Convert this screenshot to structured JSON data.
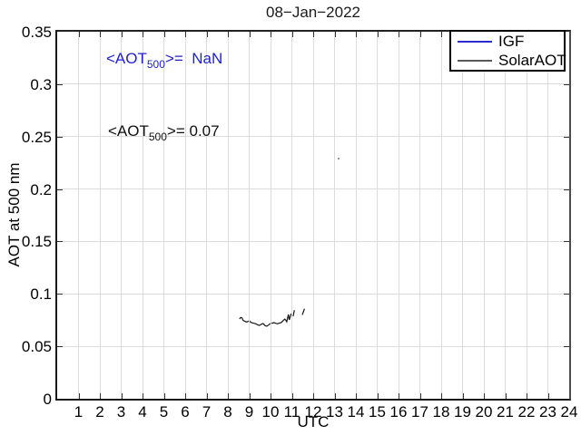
{
  "figure": {
    "title": "08−Jan−2022",
    "xlabel": "UTC",
    "ylabel": "AOT at 500 nm"
  },
  "annotations": {
    "igf_mean": {
      "pre": "<AOT",
      "sub": "500",
      "post": ">=  NaN",
      "color": "#2222cc"
    },
    "solar_mean": {
      "pre": "<AOT",
      "sub": "500",
      "post": ">= 0.07",
      "color": "#111111"
    }
  },
  "legend": {
    "items": [
      {
        "label": "IGF",
        "color": "#2a2ad4"
      },
      {
        "label": "SolarAOT",
        "color": "#595959"
      }
    ]
  },
  "colors": {
    "accent_blue": "#2222cc",
    "solar_gray": "#595959",
    "data_line": "#151515",
    "grid": "#dcdcdc"
  },
  "chart_data": {
    "type": "line",
    "title": "08−Jan−2022",
    "xlabel": "UTC",
    "ylabel": "AOT at 500 nm",
    "xlim": [
      0,
      24
    ],
    "ylim": [
      0,
      0.35
    ],
    "grid": true,
    "legend_position": "top-right",
    "x_ticks": [
      1,
      2,
      3,
      4,
      5,
      6,
      7,
      8,
      9,
      10,
      11,
      12,
      13,
      14,
      15,
      16,
      17,
      18,
      19,
      20,
      21,
      22,
      23,
      24
    ],
    "y_ticks": [
      {
        "v": 0,
        "label": "0"
      },
      {
        "v": 0.05,
        "label": "0.05"
      },
      {
        "v": 0.1,
        "label": "0.1"
      },
      {
        "v": 0.15,
        "label": "0.15"
      },
      {
        "v": 0.2,
        "label": "0.2"
      },
      {
        "v": 0.25,
        "label": "0.25"
      },
      {
        "v": 0.3,
        "label": "0.3"
      },
      {
        "v": 0.35,
        "label": "0.35"
      }
    ],
    "series": [
      {
        "name": "IGF",
        "color": "#2a2ad4",
        "mean_aot_500": "NaN",
        "segments": []
      },
      {
        "name": "SolarAOT",
        "color": "#151515",
        "mean_aot_500": 0.07,
        "segments": [
          [
            [
              8.55,
              0.076
            ],
            [
              8.6,
              0.0775
            ],
            [
              8.66,
              0.0772
            ],
            [
              8.72,
              0.0746
            ],
            [
              8.8,
              0.0738
            ],
            [
              8.88,
              0.0732
            ],
            [
              8.93,
              0.0736
            ],
            [
              9.01,
              0.0743
            ],
            [
              9.07,
              0.0729
            ],
            [
              9.14,
              0.0724
            ],
            [
              9.22,
              0.072
            ],
            [
              9.31,
              0.0715
            ],
            [
              9.4,
              0.0705
            ],
            [
              9.48,
              0.0699
            ],
            [
              9.57,
              0.071
            ],
            [
              9.65,
              0.0717
            ],
            [
              9.74,
              0.0698
            ],
            [
              9.82,
              0.0691
            ],
            [
              9.9,
              0.0703
            ],
            [
              9.99,
              0.0717
            ],
            [
              10.08,
              0.0722
            ],
            [
              10.16,
              0.0726
            ],
            [
              10.25,
              0.0719
            ],
            [
              10.33,
              0.0715
            ],
            [
              10.42,
              0.0722
            ],
            [
              10.5,
              0.0726
            ],
            [
              10.58,
              0.0742
            ],
            [
              10.67,
              0.076
            ],
            [
              10.72,
              0.0748
            ],
            [
              10.76,
              0.0734
            ],
            [
              10.8,
              0.077
            ],
            [
              10.84,
              0.0804
            ],
            [
              10.86,
              0.0775
            ],
            [
              10.88,
              0.0752
            ],
            [
              10.92,
              0.078
            ],
            [
              10.97,
              0.0812
            ]
          ],
          [
            [
              11.06,
              0.0786
            ],
            [
              11.12,
              0.0845
            ]
          ],
          [
            [
              11.49,
              0.08
            ],
            [
              11.59,
              0.0858
            ]
          ]
        ]
      }
    ],
    "stray_mark": {
      "utc": 13.15,
      "aot": 0.23
    }
  }
}
